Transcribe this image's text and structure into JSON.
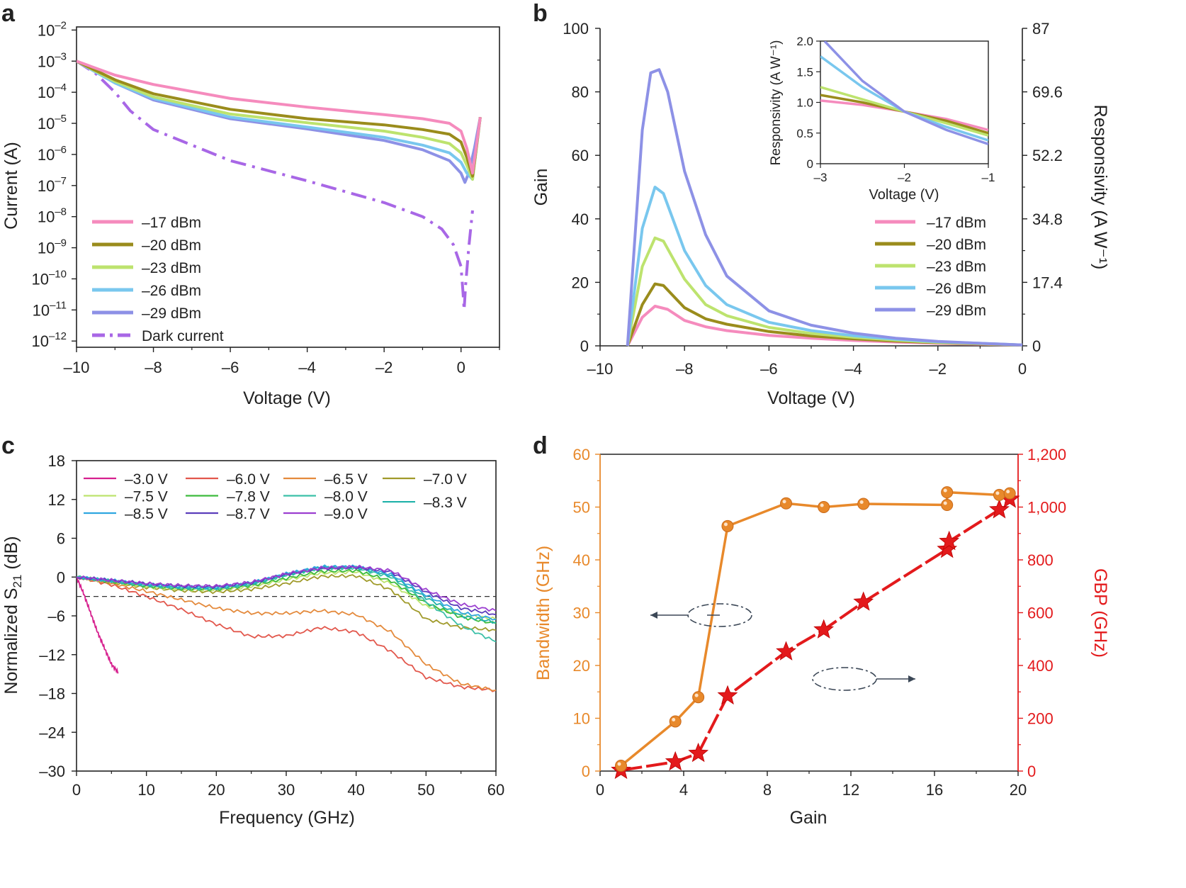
{
  "colors": {
    "p17": "#f58bbd",
    "p20": "#9a8c1c",
    "p23": "#bde36e",
    "p26": "#79c7ee",
    "p29": "#8d91e6",
    "dark": "#a867e6",
    "bw": "#e8892b",
    "gbp": "#e31a1c",
    "v30": "#d6208e",
    "v60": "#e2574c",
    "v65": "#e48a3c",
    "v70": "#a09a2a",
    "v75": "#bde36e",
    "v78": "#3dbb3d",
    "v80": "#3cc0a8",
    "v83": "#20b2aa",
    "v85": "#2fa7e0",
    "v87": "#5b3dbb",
    "v90": "#9b3fd0"
  },
  "chart_data": [
    {
      "panel": "a",
      "type": "line",
      "xlabel": "Voltage (V)",
      "ylabel": "Current (A)",
      "xlim": [
        -10,
        1
      ],
      "xticks": [
        "–10",
        "–8",
        "–6",
        "–4",
        "–2",
        "0"
      ],
      "ylim_log10": [
        -12.2,
        -1.9
      ],
      "yticks": [
        {
          "base": "10",
          "exp": "–2"
        },
        {
          "base": "10",
          "exp": "–3"
        },
        {
          "base": "10",
          "exp": "–4"
        },
        {
          "base": "10",
          "exp": "–5"
        },
        {
          "base": "10",
          "exp": "–6"
        },
        {
          "base": "10",
          "exp": "–7"
        },
        {
          "base": "10",
          "exp": "–8"
        },
        {
          "base": "10",
          "exp": "–9"
        },
        {
          "base": "10",
          "exp": "–10"
        },
        {
          "base": "10",
          "exp": "–11"
        },
        {
          "base": "10",
          "exp": "–12"
        }
      ],
      "legend_position": "bottom-left",
      "series": [
        {
          "name": "–17 dBm",
          "color_key": "p17",
          "x": [
            -10,
            -9,
            -8,
            -6,
            -4,
            -2,
            -1,
            -0.3,
            0,
            0.15,
            0.3,
            0.5
          ],
          "log10_y": [
            -3.0,
            -3.45,
            -3.75,
            -4.2,
            -4.48,
            -4.72,
            -4.85,
            -5.0,
            -5.25,
            -5.8,
            -6.6,
            -4.8
          ]
        },
        {
          "name": "–20 dBm",
          "color_key": "p20",
          "x": [
            -10,
            -9,
            -8,
            -6,
            -4,
            -2,
            -1,
            -0.3,
            0,
            0.15,
            0.3,
            0.5
          ],
          "log10_y": [
            -3.0,
            -3.6,
            -4.05,
            -4.55,
            -4.85,
            -5.05,
            -5.2,
            -5.35,
            -5.6,
            -6.1,
            -6.7,
            -4.8
          ]
        },
        {
          "name": "–23 dBm",
          "color_key": "p23",
          "x": [
            -10,
            -9,
            -8,
            -6,
            -4,
            -2,
            -1,
            -0.3,
            0,
            0.15,
            0.3,
            0.5
          ],
          "log10_y": [
            -3.0,
            -3.65,
            -4.15,
            -4.7,
            -4.98,
            -5.25,
            -5.45,
            -5.65,
            -5.95,
            -6.35,
            -6.8,
            -4.8
          ]
        },
        {
          "name": "–26 dBm",
          "color_key": "p26",
          "x": [
            -10,
            -9,
            -8,
            -6,
            -4,
            -2,
            -1,
            -0.3,
            0,
            0.15,
            0.3,
            0.5
          ],
          "log10_y": [
            -3.0,
            -3.7,
            -4.2,
            -4.8,
            -5.12,
            -5.45,
            -5.7,
            -5.95,
            -6.25,
            -6.6,
            -6.8,
            -4.8
          ]
        },
        {
          "name": "–29 dBm",
          "color_key": "p29",
          "x": [
            -10,
            -9,
            -8,
            -6,
            -4,
            -2,
            -1,
            -0.3,
            0,
            0.1,
            0.2,
            0.35,
            0.5
          ],
          "log10_y": [
            -3.0,
            -3.7,
            -4.25,
            -4.85,
            -5.18,
            -5.55,
            -5.85,
            -6.2,
            -6.6,
            -6.9,
            -6.6,
            -5.8,
            -4.8
          ]
        },
        {
          "name": "Dark current",
          "color_key": "dark",
          "dashed": true,
          "x": [
            -10,
            -9.5,
            -9,
            -8.6,
            -8,
            -6,
            -4,
            -2,
            -1,
            -0.5,
            -0.2,
            0,
            0.05,
            0.08,
            0.12,
            0.2,
            0.3
          ],
          "log10_y": [
            -3.0,
            -3.4,
            -4.0,
            -4.6,
            -5.2,
            -6.2,
            -6.85,
            -7.55,
            -8.0,
            -8.4,
            -8.9,
            -9.6,
            -10.4,
            -11.0,
            -10.2,
            -9.0,
            -7.8
          ]
        }
      ]
    },
    {
      "panel": "b",
      "type": "line",
      "xlabel": "Voltage (V)",
      "ylabel": "Gain",
      "ylabel_right": "Responsivity (A W⁻¹)",
      "xlim": [
        -10,
        0
      ],
      "ylim": [
        0,
        100
      ],
      "xticks": [
        "–10",
        "–8",
        "–6",
        "–4",
        "–2",
        "0"
      ],
      "yticks": [
        "0",
        "20",
        "40",
        "60",
        "80",
        "100"
      ],
      "yticks_right": [
        "0",
        "17.4",
        "34.8",
        "52.2",
        "69.6",
        "87"
      ],
      "legend_position": "right",
      "series": [
        {
          "name": "–17 dBm",
          "color_key": "p17",
          "x": [
            -9.35,
            -9.0,
            -8.7,
            -8.4,
            -8.0,
            -7.5,
            -7.0,
            -6.0,
            -5.0,
            -4.0,
            -3.0,
            -2.0,
            -1.0,
            0
          ],
          "y": [
            0,
            9,
            12.5,
            11.5,
            8,
            6,
            4.8,
            3.3,
            2.4,
            1.7,
            1.2,
            0.8,
            0.5,
            0.3
          ]
        },
        {
          "name": "–20 dBm",
          "color_key": "p20",
          "x": [
            -9.35,
            -9.0,
            -8.7,
            -8.5,
            -8.0,
            -7.5,
            -7.0,
            -6.0,
            -5.0,
            -4.0,
            -3.0,
            -2.0,
            -1.0,
            0
          ],
          "y": [
            0,
            13,
            19.5,
            19,
            12,
            8.5,
            6.8,
            4.5,
            3.1,
            2.2,
            1.5,
            1.0,
            0.6,
            0.3
          ]
        },
        {
          "name": "–23 dBm",
          "color_key": "p23",
          "x": [
            -9.35,
            -9.0,
            -8.7,
            -8.5,
            -8.0,
            -7.5,
            -7.0,
            -6.0,
            -5.0,
            -4.0,
            -3.0,
            -2.0,
            -1.0,
            0
          ],
          "y": [
            0,
            25,
            34,
            33,
            21,
            13,
            9.5,
            5.8,
            3.9,
            2.7,
            1.8,
            1.1,
            0.7,
            0.3
          ]
        },
        {
          "name": "–26 dBm",
          "color_key": "p26",
          "x": [
            -9.35,
            -9.0,
            -8.7,
            -8.5,
            -8.0,
            -7.5,
            -7.0,
            -6.0,
            -5.0,
            -4.0,
            -3.0,
            -2.0,
            -1.0,
            0
          ],
          "y": [
            0,
            37,
            50,
            48,
            30,
            19,
            13,
            7.4,
            4.8,
            3.2,
            2.1,
            1.3,
            0.8,
            0.3
          ]
        },
        {
          "name": "–29 dBm",
          "color_key": "p29",
          "x": [
            -9.35,
            -9.0,
            -8.8,
            -8.6,
            -8.4,
            -8.0,
            -7.5,
            -7.0,
            -6.0,
            -5.0,
            -4.0,
            -3.0,
            -2.0,
            -1.0,
            0
          ],
          "y": [
            0,
            68,
            86,
            87,
            80,
            55,
            35,
            22,
            11,
            6.5,
            4.0,
            2.4,
            1.4,
            0.8,
            0.3
          ]
        }
      ],
      "inset": {
        "xlabel": "Voltage (V)",
        "ylabel": "Responsivity (A W⁻¹)",
        "xlim": [
          -3,
          -1
        ],
        "ylim": [
          0,
          2.0
        ],
        "xticks": [
          "–3",
          "–2",
          "–1"
        ],
        "yticks": [
          "0",
          "0.5",
          "1.0",
          "1.5",
          "2.0"
        ],
        "series": [
          {
            "name": "–17 dBm",
            "color_key": "p17",
            "x": [
              -3,
              -2.5,
              -2,
              -1.5,
              -1
            ],
            "y": [
              1.03,
              0.96,
              0.85,
              0.73,
              0.55
            ]
          },
          {
            "name": "–20 dBm",
            "color_key": "p20",
            "x": [
              -3,
              -2.5,
              -2,
              -1.5,
              -1
            ],
            "y": [
              1.12,
              1.0,
              0.85,
              0.7,
              0.5
            ]
          },
          {
            "name": "–23 dBm",
            "color_key": "p23",
            "x": [
              -3,
              -2.5,
              -2,
              -1.5,
              -1
            ],
            "y": [
              1.25,
              1.05,
              0.85,
              0.66,
              0.46
            ]
          },
          {
            "name": "–26 dBm",
            "color_key": "p26",
            "x": [
              -3,
              -2.5,
              -2,
              -1.5,
              -1
            ],
            "y": [
              1.75,
              1.25,
              0.85,
              0.6,
              0.38
            ]
          },
          {
            "name": "–29 dBm",
            "color_key": "p29",
            "x": [
              -2.95,
              -2.5,
              -2,
              -1.5,
              -1
            ],
            "y": [
              2.0,
              1.35,
              0.85,
              0.55,
              0.32
            ]
          }
        ]
      }
    },
    {
      "panel": "c",
      "type": "line",
      "xlabel": "Frequency (GHz)",
      "ylabel_parts": [
        "Normalized S",
        "21",
        " (dB)"
      ],
      "xlim": [
        0,
        60
      ],
      "ylim": [
        -30,
        18
      ],
      "xticks": [
        "0",
        "10",
        "20",
        "30",
        "40",
        "50",
        "60"
      ],
      "yticks": [
        "–30",
        "–24",
        "–18",
        "–12",
        "–6",
        "0",
        "6",
        "12",
        "18"
      ],
      "reference_line_db": -3,
      "legend_position": "top",
      "series": [
        {
          "name": "–3.0 V",
          "color_key": "v30",
          "x": [
            0,
            1,
            2,
            3,
            4,
            5,
            6
          ],
          "y": [
            0,
            -2.5,
            -5.5,
            -8.5,
            -11,
            -13.5,
            -14.8
          ]
        },
        {
          "name": "–6.0 V",
          "color_key": "v60",
          "x": [
            0,
            5,
            10,
            15,
            20,
            25,
            30,
            35,
            40,
            45,
            50,
            55,
            60
          ],
          "y": [
            0,
            -1.2,
            -3.0,
            -5.0,
            -7.3,
            -9.2,
            -9.1,
            -7.8,
            -8.5,
            -11.5,
            -15.5,
            -17.0,
            -17.5
          ]
        },
        {
          "name": "–6.5 V",
          "color_key": "v65",
          "x": [
            0,
            5,
            10,
            15,
            20,
            25,
            30,
            35,
            40,
            45,
            50,
            55,
            60
          ],
          "y": [
            0,
            -1.0,
            -2.2,
            -3.5,
            -4.8,
            -5.6,
            -5.6,
            -5.2,
            -5.8,
            -8.5,
            -13.5,
            -16.5,
            -17.5
          ]
        },
        {
          "name": "–7.0 V",
          "color_key": "v70",
          "x": [
            0,
            5,
            10,
            15,
            20,
            25,
            30,
            35,
            40,
            45,
            50,
            55,
            60
          ],
          "y": [
            0,
            -0.8,
            -1.6,
            -2.1,
            -2.3,
            -1.9,
            -1.0,
            0.1,
            0.2,
            -2.0,
            -6.5,
            -7.8,
            -8.2
          ]
        },
        {
          "name": "–7.5 V",
          "color_key": "v75",
          "x": [
            0,
            5,
            10,
            15,
            20,
            25,
            30,
            35,
            40,
            45,
            50,
            55,
            60
          ],
          "y": [
            0,
            -0.7,
            -1.5,
            -1.9,
            -2.0,
            -1.5,
            -0.4,
            0.6,
            0.8,
            -1.0,
            -4.5,
            -5.8,
            -6.5
          ]
        },
        {
          "name": "–7.8 V",
          "color_key": "v78",
          "x": [
            0,
            5,
            10,
            15,
            20,
            25,
            30,
            35,
            40,
            45,
            50,
            55,
            60
          ],
          "y": [
            0,
            -0.7,
            -1.4,
            -1.8,
            -1.9,
            -1.3,
            -0.2,
            0.9,
            1.0,
            -0.6,
            -4.0,
            -6.2,
            -7.2
          ]
        },
        {
          "name": "–8.0 V",
          "color_key": "v80",
          "x": [
            0,
            5,
            10,
            15,
            20,
            25,
            30,
            35,
            40,
            45,
            50,
            55,
            60
          ],
          "y": [
            0,
            -0.6,
            -1.3,
            -1.7,
            -1.8,
            -1.1,
            0.3,
            1.4,
            1.4,
            0.0,
            -3.8,
            -7.5,
            -10.0
          ]
        },
        {
          "name": "–8.3 V",
          "color_key": "v83",
          "x": [
            0,
            5,
            10,
            15,
            20,
            25,
            30,
            35,
            40,
            45,
            50,
            55,
            60
          ],
          "y": [
            0,
            -0.6,
            -1.2,
            -1.6,
            -1.7,
            -1.0,
            0.4,
            1.5,
            1.5,
            0.2,
            -3.2,
            -6.0,
            -7.0
          ]
        },
        {
          "name": "–8.5 V",
          "color_key": "v85",
          "x": [
            0,
            5,
            10,
            15,
            20,
            25,
            30,
            35,
            40,
            45,
            50,
            55,
            60
          ],
          "y": [
            0,
            -0.5,
            -1.1,
            -1.5,
            -1.6,
            -0.9,
            0.5,
            1.6,
            1.6,
            0.4,
            -2.8,
            -5.5,
            -6.5
          ]
        },
        {
          "name": "–8.7 V",
          "color_key": "v87",
          "x": [
            0,
            5,
            10,
            15,
            20,
            25,
            30,
            35,
            40,
            45,
            50,
            55,
            60
          ],
          "y": [
            0,
            -0.5,
            -1.0,
            -1.4,
            -1.5,
            -0.9,
            0.4,
            1.3,
            1.5,
            0.8,
            -2.3,
            -4.8,
            -5.8
          ]
        },
        {
          "name": "–9.0 V",
          "color_key": "v90",
          "x": [
            0,
            5,
            10,
            15,
            20,
            25,
            30,
            35,
            40,
            45,
            50,
            55,
            60
          ],
          "y": [
            0,
            -0.5,
            -1.0,
            -1.3,
            -1.4,
            -0.8,
            0.5,
            1.4,
            1.6,
            1.0,
            -2.0,
            -4.2,
            -5.2
          ]
        }
      ]
    },
    {
      "panel": "d",
      "type": "line",
      "xlabel": "Gain",
      "ylabel": "Bandwidth (GHz)",
      "ylabel_right": "GBP (GHz)",
      "xlim": [
        0,
        20
      ],
      "ylim": [
        0,
        60
      ],
      "ylim_right": [
        0,
        1200
      ],
      "xticks": [
        "0",
        "4",
        "8",
        "12",
        "16",
        "20"
      ],
      "yticks": [
        "0",
        "10",
        "20",
        "30",
        "40",
        "50",
        "60"
      ],
      "yticks_right": [
        "0",
        "200",
        "400",
        "600",
        "800",
        "1,000",
        "1,200"
      ],
      "series": [
        {
          "name": "Bandwidth",
          "axis": "left",
          "marker": "circle",
          "color_key": "bw",
          "x": [
            1.0,
            3.6,
            4.7,
            6.1,
            8.9,
            10.7,
            12.6,
            16.6,
            16.6,
            19.1,
            19.6
          ],
          "y": [
            1.0,
            9.4,
            14.0,
            46.4,
            50.7,
            50.0,
            50.6,
            50.4,
            52.8,
            52.3,
            52.6
          ]
        },
        {
          "name": "GBP",
          "axis": "right",
          "marker": "star",
          "color_key": "gbp",
          "x": [
            1.0,
            3.6,
            4.7,
            6.1,
            8.9,
            10.7,
            12.6,
            16.6,
            16.7,
            19.1,
            19.6
          ],
          "y": [
            3,
            35,
            67,
            285,
            452,
            535,
            640,
            840,
            870,
            990,
            1030
          ]
        }
      ]
    }
  ],
  "panels": {
    "a": {
      "letter": "a"
    },
    "b": {
      "letter": "b"
    },
    "c": {
      "letter": "c"
    },
    "d": {
      "letter": "d"
    }
  }
}
